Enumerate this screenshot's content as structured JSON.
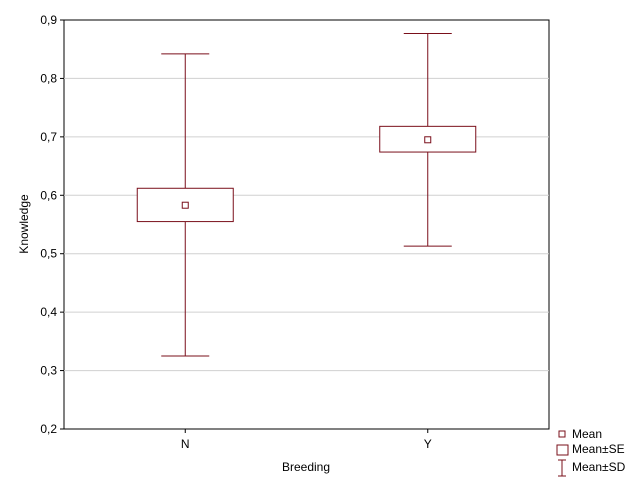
{
  "chart_data": {
    "type": "box",
    "xlabel": "Breeding",
    "ylabel": "Knowledge",
    "categories": [
      "N",
      "Y"
    ],
    "ylim": [
      0.2,
      0.9
    ],
    "yticks": [
      "0,2",
      "0,3",
      "0,4",
      "0,5",
      "0,6",
      "0,7",
      "0,8",
      "0,9"
    ],
    "y_tick_values": [
      0.2,
      0.3,
      0.4,
      0.5,
      0.6,
      0.7,
      0.8,
      0.9
    ],
    "grid": true,
    "legend_position": "bottom-right",
    "series": [
      {
        "category": "N",
        "mean": 0.583,
        "mean_minus_se": 0.555,
        "mean_plus_se": 0.612,
        "mean_minus_sd": 0.325,
        "mean_plus_sd": 0.842
      },
      {
        "category": "Y",
        "mean": 0.695,
        "mean_minus_se": 0.674,
        "mean_plus_se": 0.718,
        "mean_minus_sd": 0.513,
        "mean_plus_sd": 0.877
      }
    ],
    "legend": [
      "Mean",
      "Mean±SE",
      "Mean±SD"
    ],
    "colors": {
      "series": "#7a0f1a",
      "grid": "#d0d0d0",
      "axes": "#000000"
    }
  }
}
